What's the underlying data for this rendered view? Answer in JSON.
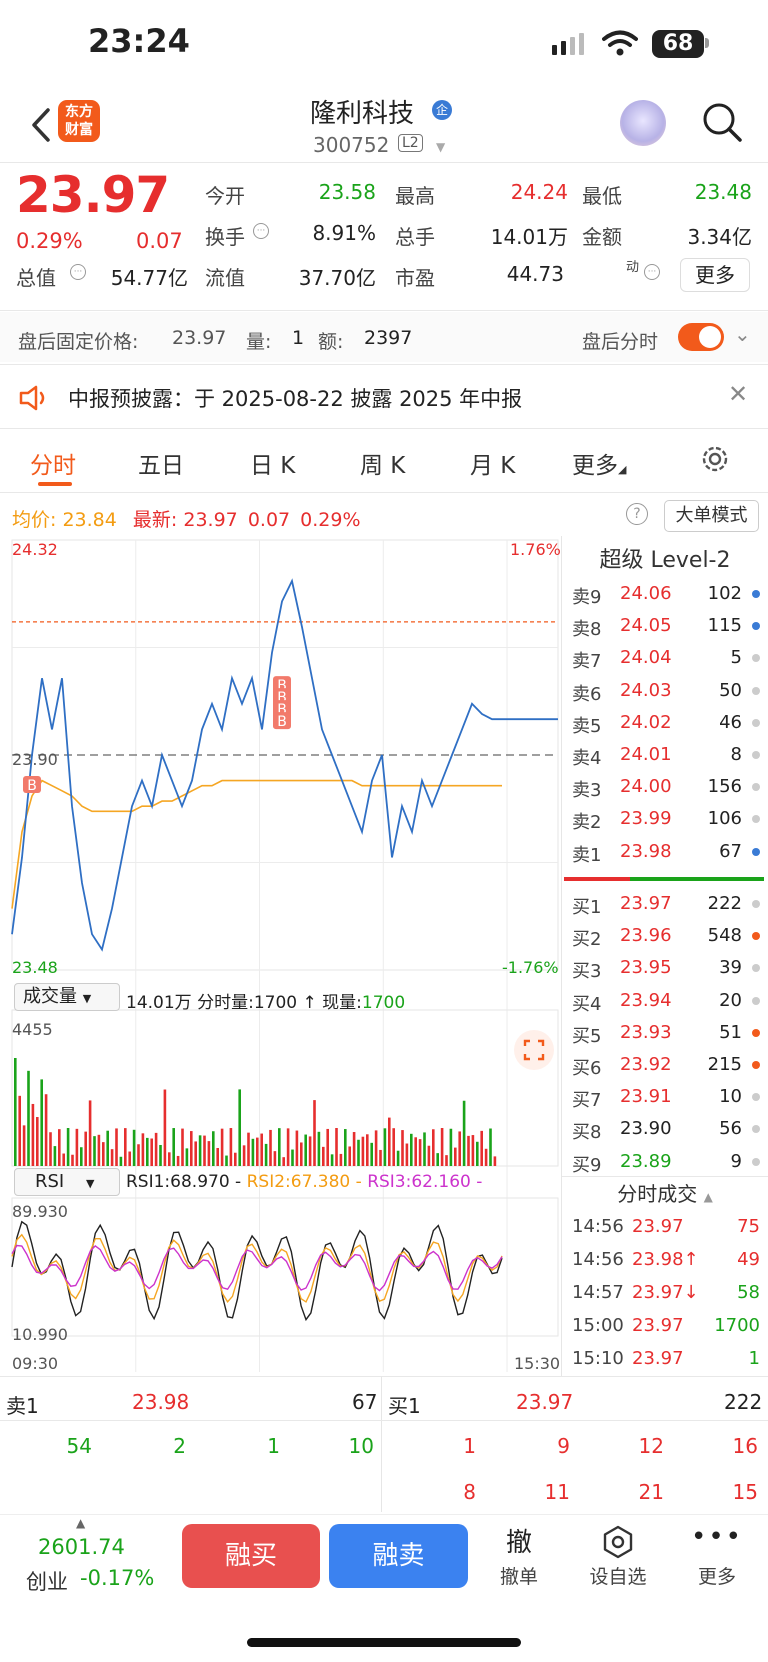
{
  "status": {
    "time": "23:24",
    "battery": "68"
  },
  "header": {
    "stock_name": "隆利科技",
    "ent_badge": "企",
    "stock_code": "300752",
    "l2": "L2",
    "logo_line1": "东方",
    "logo_line2": "财富"
  },
  "quote": {
    "price": "23.97",
    "pct": "0.29%",
    "chg": "0.07",
    "fields": [
      {
        "label": "今开",
        "value": "23.58",
        "color": "green"
      },
      {
        "label": "最高",
        "value": "24.24",
        "color": "red"
      },
      {
        "label": "最低",
        "value": "23.48",
        "color": "green"
      },
      {
        "label": "换手",
        "value": "8.91%",
        "color": "black"
      },
      {
        "label": "总手",
        "value": "14.01万",
        "color": "black"
      },
      {
        "label": "金额",
        "value": "3.34亿",
        "color": "black"
      },
      {
        "label": "总值",
        "value": "54.77亿",
        "color": "black"
      },
      {
        "label": "流值",
        "value": "37.70亿",
        "color": "black"
      },
      {
        "label": "市盈",
        "label_sup": "动",
        "value": "44.73",
        "color": "black"
      }
    ],
    "more_label": "更多"
  },
  "after_hours": {
    "price_label": "盘后固定价格:",
    "price": "23.97",
    "vol_label": "量:",
    "vol": "1",
    "amt_label": "额:",
    "amt": "2397",
    "toggle_label": "盘后分时"
  },
  "notice": {
    "text": "中报预披露：于 2025-08-22 披露 2025 年中报"
  },
  "tabs": [
    "分时",
    "五日",
    "日 K",
    "周 K",
    "月 K",
    "更多"
  ],
  "chart_info": {
    "avg_label": "均价:",
    "avg": "23.84",
    "latest_label": "最新:",
    "latest": "23.97",
    "chg": "0.07",
    "pct": "0.29%",
    "big_order_mode": "大单模式"
  },
  "chart_data": {
    "type": "line",
    "x_start": "09:30",
    "x_end": "15:30",
    "ylim": [
      23.48,
      24.32
    ],
    "ref_price": 23.9,
    "ref_label": "23.90",
    "y_max_label": "24.32",
    "y_min_label": "23.48",
    "pct_max_label": "1.76%",
    "pct_min_label": "-1.76%",
    "high_line": 24.16,
    "price_series": [
      23.55,
      23.7,
      23.9,
      24.05,
      23.95,
      24.05,
      23.8,
      23.65,
      23.55,
      23.52,
      23.6,
      23.7,
      23.8,
      23.85,
      23.8,
      23.9,
      23.85,
      23.8,
      23.85,
      23.95,
      24.0,
      23.95,
      24.05,
      24.0,
      24.05,
      23.95,
      24.1,
      24.2,
      24.24,
      24.15,
      24.05,
      23.95,
      23.9,
      23.85,
      23.8,
      23.75,
      23.85,
      23.9,
      23.7,
      23.8,
      23.75,
      23.85,
      23.8,
      23.85,
      23.9,
      23.95,
      24.0,
      23.98,
      23.97,
      23.97
    ],
    "avg_series": [
      23.6,
      23.75,
      23.82,
      23.85,
      23.84,
      23.83,
      23.82,
      23.8,
      23.79,
      23.79,
      23.79,
      23.79,
      23.79,
      23.8,
      23.8,
      23.81,
      23.81,
      23.82,
      23.83,
      23.84,
      23.84,
      23.85,
      23.85,
      23.85,
      23.85,
      23.85,
      23.85,
      23.85,
      23.85,
      23.85,
      23.85,
      23.85,
      23.85,
      23.85,
      23.85,
      23.84,
      23.84,
      23.84,
      23.84,
      23.84,
      23.84,
      23.84,
      23.84,
      23.84,
      23.84,
      23.84,
      23.84,
      23.84,
      23.84,
      23.84
    ],
    "avg_color": "#f5a623",
    "price_color": "#2f6fc4",
    "markers": [
      "B",
      "B",
      "B",
      "B",
      "B"
    ],
    "volume": {
      "select_label": "成交量",
      "total": "14.01万",
      "minute_label": "分时量:",
      "minute": "1700",
      "now_label": "现量:",
      "now": "1700",
      "max_label": "4455"
    },
    "rsi": {
      "select_label": "RSI",
      "rsi1_label": "RSI1:68.970 -",
      "rsi2_label": "RSI2:67.380 -",
      "rsi3_label": "RSI3:62.160 -",
      "max_label": "89.930",
      "min_label": "10.990"
    }
  },
  "order_book": {
    "title": "超级 Level-2",
    "asks": [
      {
        "label": "卖9",
        "price": "24.06",
        "vol": "102",
        "dot": "#3a7bd5"
      },
      {
        "label": "卖8",
        "price": "24.05",
        "vol": "115",
        "dot": "#3a7bd5"
      },
      {
        "label": "卖7",
        "price": "24.04",
        "vol": "5",
        "dot": "#cccccc"
      },
      {
        "label": "卖6",
        "price": "24.03",
        "vol": "50",
        "dot": "#cccccc"
      },
      {
        "label": "卖5",
        "price": "24.02",
        "vol": "46",
        "dot": "#cccccc"
      },
      {
        "label": "卖4",
        "price": "24.01",
        "vol": "8",
        "dot": "#cccccc"
      },
      {
        "label": "卖3",
        "price": "24.00",
        "vol": "156",
        "dot": "#cccccc"
      },
      {
        "label": "卖2",
        "price": "23.99",
        "vol": "106",
        "dot": "#cccccc"
      },
      {
        "label": "卖1",
        "price": "23.98",
        "vol": "67",
        "dot": "#3a7bd5"
      }
    ],
    "bids": [
      {
        "label": "买1",
        "price": "23.97",
        "vol": "222",
        "dot": "#cccccc",
        "pc": "red"
      },
      {
        "label": "买2",
        "price": "23.96",
        "vol": "548",
        "dot": "#f25a1b",
        "pc": "red"
      },
      {
        "label": "买3",
        "price": "23.95",
        "vol": "39",
        "dot": "#cccccc",
        "pc": "red"
      },
      {
        "label": "买4",
        "price": "23.94",
        "vol": "20",
        "dot": "#cccccc",
        "pc": "red"
      },
      {
        "label": "买5",
        "price": "23.93",
        "vol": "51",
        "dot": "#f25a1b",
        "pc": "red"
      },
      {
        "label": "买6",
        "price": "23.92",
        "vol": "215",
        "dot": "#f25a1b",
        "pc": "red"
      },
      {
        "label": "买7",
        "price": "23.91",
        "vol": "10",
        "dot": "#cccccc",
        "pc": "red"
      },
      {
        "label": "买8",
        "price": "23.90",
        "vol": "56",
        "dot": "#cccccc",
        "pc": "black"
      },
      {
        "label": "买9",
        "price": "23.89",
        "vol": "9",
        "dot": "#cccccc",
        "pc": "green"
      }
    ],
    "trades_title": "分时成交",
    "trades": [
      {
        "time": "14:56",
        "price": "23.97",
        "vol": "75",
        "vc": "red"
      },
      {
        "time": "14:56",
        "price": "23.98↑",
        "vol": "49",
        "vc": "red"
      },
      {
        "time": "14:57",
        "price": "23.97↓",
        "vol": "58",
        "vc": "green"
      },
      {
        "time": "15:00",
        "price": "23.97",
        "vol": "1700",
        "vc": "green"
      },
      {
        "time": "15:10",
        "price": "23.97",
        "vol": "1",
        "vc": "green"
      }
    ]
  },
  "summary": {
    "sell1_label": "卖1",
    "sell1_price": "23.98",
    "sell1_vol": "67",
    "buy1_label": "买1",
    "buy1_price": "23.97",
    "buy1_vol": "222",
    "sell_queue": [
      "54",
      "2",
      "1",
      "10"
    ],
    "buy_queue_row1": [
      "1",
      "9",
      "12",
      "16"
    ],
    "buy_queue_row2": [
      "8",
      "11",
      "21",
      "15"
    ]
  },
  "toolbar": {
    "index_value": "2601.74",
    "index_name": "创业",
    "index_pct": "-0.17%",
    "buy": "融买",
    "sell": "融卖",
    "cancel_icon": "撤",
    "cancel": "撤单",
    "watch": "设自选",
    "more": "更多"
  }
}
